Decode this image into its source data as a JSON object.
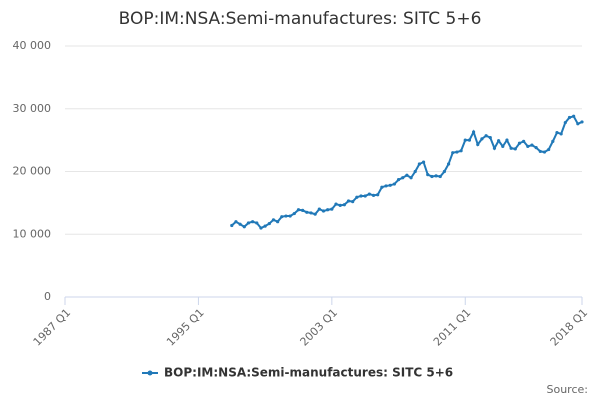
{
  "chart_data": {
    "type": "line",
    "title": "BOP:IM:NSA:Semi-manufactures: SITC 5+6",
    "source": "Source:",
    "categories": [
      "1987 Q1",
      null,
      null,
      null,
      null,
      null,
      null,
      null,
      null,
      null,
      null,
      null,
      null,
      null,
      null,
      null,
      null,
      null,
      null,
      null,
      null,
      null,
      null,
      null,
      null,
      null,
      null,
      null,
      null,
      null,
      null,
      null,
      "1995 Q1",
      null,
      null,
      null,
      null,
      null,
      null,
      null,
      null,
      null,
      null,
      null,
      null,
      null,
      null,
      null,
      null,
      null,
      null,
      null,
      null,
      null,
      null,
      null,
      null,
      null,
      null,
      null,
      null,
      null,
      null,
      null,
      "2003 Q1",
      null,
      null,
      null,
      null,
      null,
      null,
      null,
      null,
      null,
      null,
      null,
      null,
      null,
      null,
      null,
      null,
      null,
      null,
      null,
      null,
      null,
      null,
      null,
      null,
      null,
      null,
      null,
      null,
      null,
      null,
      null,
      "2011 Q1",
      null,
      null,
      null,
      null,
      null,
      null,
      null,
      null,
      null,
      null,
      null,
      null,
      null,
      null,
      null,
      null,
      null,
      null,
      null,
      null,
      null,
      null,
      null,
      null,
      null,
      null,
      null,
      "2018 Q1"
    ],
    "series": [
      {
        "name": "BOP:IM:NSA:Semi-manufactures: SITC 5+6",
        "color": "#2179b8",
        "values": [
          null,
          null,
          null,
          null,
          null,
          null,
          null,
          null,
          null,
          null,
          null,
          null,
          null,
          null,
          null,
          null,
          null,
          null,
          null,
          null,
          null,
          null,
          null,
          null,
          null,
          null,
          null,
          null,
          null,
          null,
          null,
          null,
          null,
          null,
          null,
          null,
          null,
          null,
          null,
          null,
          11400,
          12000,
          11600,
          11200,
          11800,
          12000,
          11800,
          11000,
          11300,
          11700,
          12300,
          12000,
          12800,
          12900,
          12900,
          13300,
          13900,
          13800,
          13500,
          13400,
          13200,
          14000,
          13700,
          13900,
          14000,
          14800,
          14600,
          14700,
          15300,
          15200,
          15900,
          16100,
          16100,
          16400,
          16200,
          16300,
          17500,
          17700,
          17800,
          18000,
          18700,
          19000,
          19400,
          19000,
          20000,
          21200,
          21500,
          19500,
          19200,
          19300,
          19200,
          20000,
          21200,
          23000,
          23100,
          23300,
          25000,
          25000,
          26300,
          24300,
          25200,
          25700,
          25400,
          23700,
          24900,
          24000,
          25000,
          23700,
          23600,
          24500,
          24800,
          24000,
          24200,
          23800,
          23200,
          23100,
          23500,
          24800,
          26200,
          26000,
          27800,
          28600,
          28800,
          27600,
          27900
        ]
      }
    ],
    "ylim": [
      0,
      40000
    ],
    "yticks": [
      0,
      {
        "value": 10000,
        "label": "10 000"
      },
      {
        "value": 20000,
        "label": "20 000"
      },
      {
        "value": 30000,
        "label": "30 000"
      },
      {
        "value": 40000,
        "label": "40 000"
      }
    ],
    "grid": true
  }
}
